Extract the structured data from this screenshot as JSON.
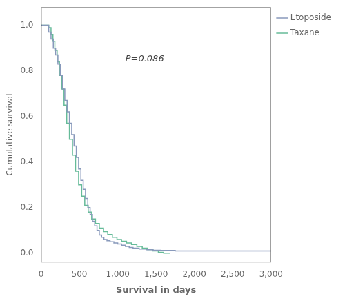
{
  "chart_data": {
    "type": "step",
    "xlabel": "Survival in days",
    "ylabel": "Cumulative survival",
    "xlim": [
      0,
      3000
    ],
    "ylim": [
      -0.04,
      1.08
    ],
    "xticks": [
      0,
      500,
      {
        "value": 1000,
        "label": "1,000"
      },
      {
        "value": 1500,
        "label": "1,500"
      },
      {
        "value": 2000,
        "label": "2,000"
      },
      {
        "value": 2500,
        "label": "2,500"
      },
      {
        "value": 3000,
        "label": "3,000"
      }
    ],
    "yticks": [
      {
        "value": 0.0,
        "label": "0.0"
      },
      0.2,
      0.4,
      0.6,
      0.8,
      {
        "value": 1.0,
        "label": "1.0"
      }
    ],
    "grid": false,
    "legend": "right",
    "annotations": [
      {
        "text": "P=0.086",
        "x": 1100,
        "y": 0.84
      }
    ],
    "series": [
      {
        "name": "Etoposide",
        "color": "#8899bb",
        "x": [
          0,
          100,
          130,
          160,
          190,
          220,
          250,
          280,
          310,
          340,
          370,
          400,
          430,
          460,
          490,
          520,
          550,
          580,
          610,
          640,
          670,
          700,
          730,
          760,
          790,
          820,
          860,
          900,
          950,
          1000,
          1050,
          1100,
          1150,
          1200,
          1280,
          1370,
          1460,
          1560,
          1650,
          1750,
          1900,
          2100,
          2300,
          2600,
          3000
        ],
        "values": [
          1.0,
          1.0,
          0.97,
          0.94,
          0.9,
          0.87,
          0.83,
          0.78,
          0.72,
          0.67,
          0.62,
          0.57,
          0.52,
          0.47,
          0.42,
          0.37,
          0.32,
          0.28,
          0.24,
          0.2,
          0.17,
          0.14,
          0.12,
          0.1,
          0.08,
          0.07,
          0.06,
          0.055,
          0.05,
          0.045,
          0.04,
          0.035,
          0.03,
          0.025,
          0.022,
          0.018,
          0.015,
          0.013,
          0.012,
          0.012,
          0.01,
          0.01,
          0.01,
          0.01,
          0.01
        ]
      },
      {
        "name": "Taxane",
        "color": "#66bb99",
        "x": [
          0,
          100,
          130,
          155,
          180,
          210,
          240,
          270,
          300,
          335,
          370,
          410,
          450,
          490,
          530,
          570,
          615,
          660,
          710,
          760,
          815,
          870,
          930,
          990,
          1050,
          1115,
          1180,
          1250,
          1320,
          1390,
          1460,
          1530,
          1600,
          1680
        ],
        "values": [
          1.0,
          1.0,
          0.99,
          0.96,
          0.93,
          0.89,
          0.84,
          0.78,
          0.72,
          0.65,
          0.57,
          0.5,
          0.43,
          0.36,
          0.3,
          0.25,
          0.21,
          0.18,
          0.15,
          0.13,
          0.11,
          0.095,
          0.082,
          0.07,
          0.06,
          0.052,
          0.045,
          0.038,
          0.03,
          0.022,
          0.016,
          0.01,
          0.004,
          0.0
        ]
      }
    ]
  }
}
